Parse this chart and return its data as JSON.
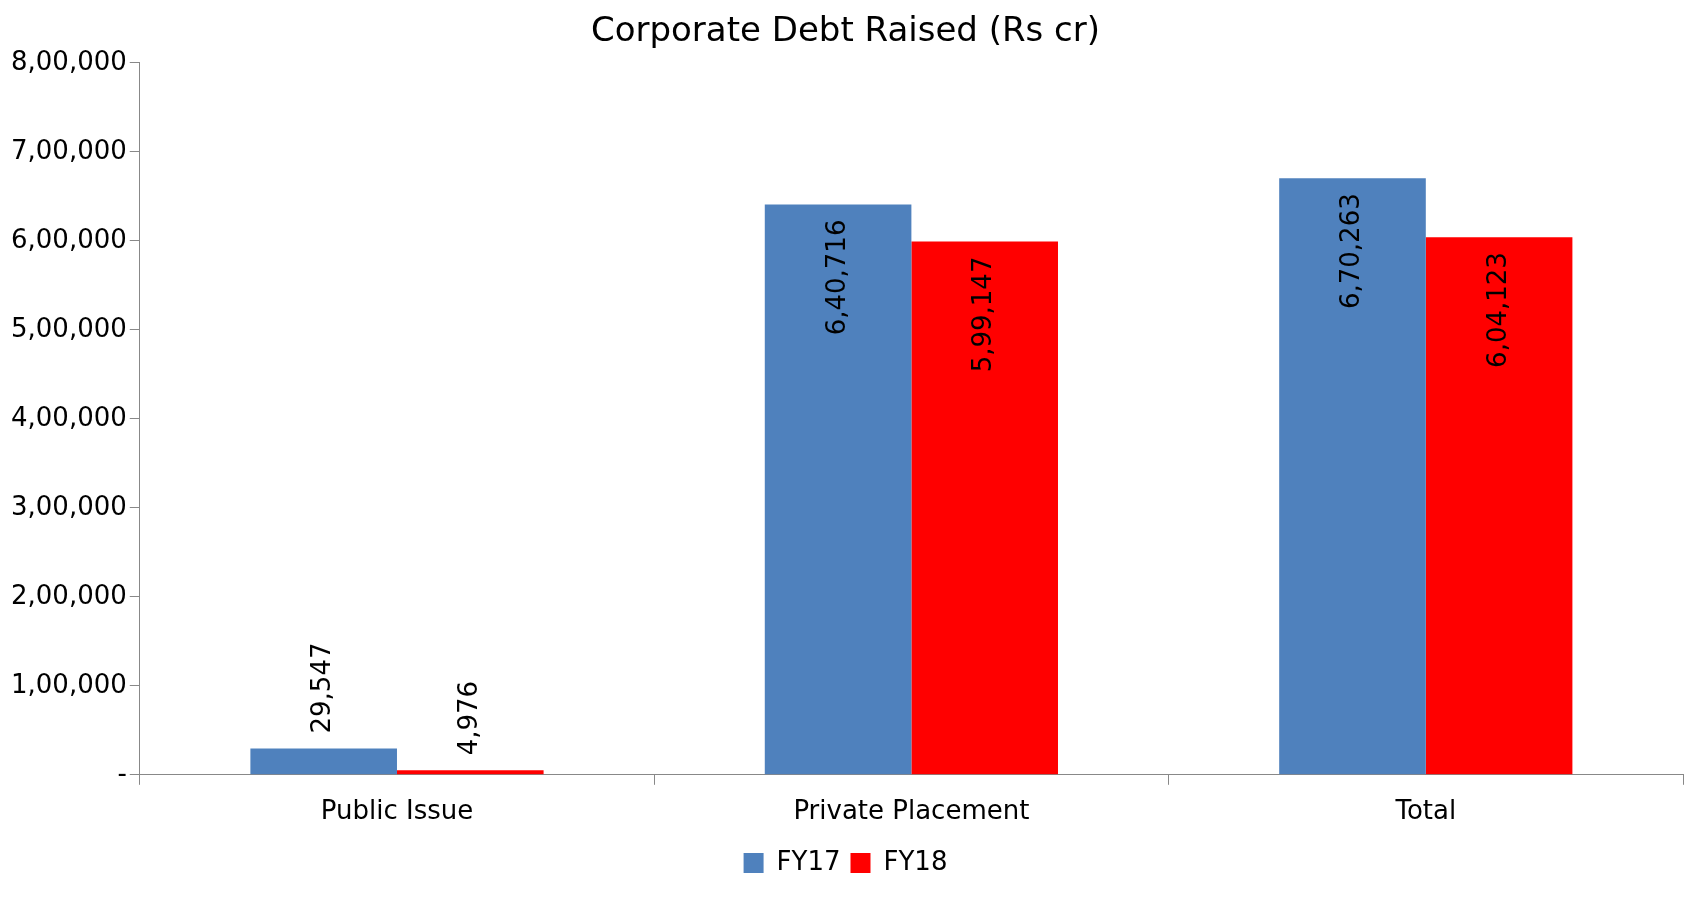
{
  "chart_data": {
    "type": "bar",
    "title": "Corporate Debt Raised (Rs cr)",
    "categories": [
      "Public Issue",
      "Private Placement",
      "Total"
    ],
    "series": [
      {
        "name": "FY17",
        "color": "#4f81bd",
        "values": [
          29547,
          640716,
          670263
        ],
        "value_labels": [
          "29,547",
          "6,40,716",
          "6,70,263"
        ]
      },
      {
        "name": "FY18",
        "color": "#ff0000",
        "values": [
          4976,
          599147,
          604123
        ],
        "value_labels": [
          "4,976",
          "5,99,147",
          "6,04,123"
        ]
      }
    ],
    "ylim": [
      0,
      800000
    ],
    "yticks": [
      {
        "value": 0,
        "label": "-"
      },
      {
        "value": 100000,
        "label": "1,00,000"
      },
      {
        "value": 200000,
        "label": "2,00,000"
      },
      {
        "value": 300000,
        "label": "3,00,000"
      },
      {
        "value": 400000,
        "label": "4,00,000"
      },
      {
        "value": 500000,
        "label": "5,00,000"
      },
      {
        "value": 600000,
        "label": "6,00,000"
      },
      {
        "value": 700000,
        "label": "7,00,000"
      },
      {
        "value": 800000,
        "label": "8,00,000"
      }
    ],
    "grid": false,
    "legend": "bottom"
  }
}
